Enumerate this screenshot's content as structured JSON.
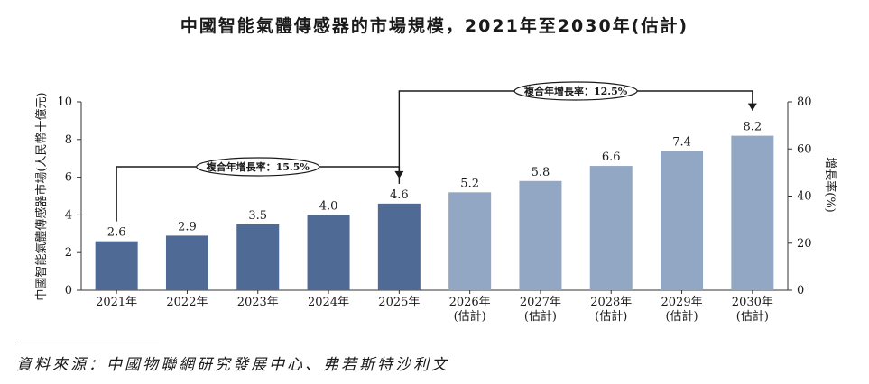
{
  "chart_data": {
    "type": "bar",
    "title": "中國智能氣體傳感器的市場規模，2021年至2030年(估計)",
    "ylabel": "中國智能氣體傳感器市場(人民幣十億元)",
    "y2label": "增長率(%)",
    "ylim": [
      0,
      10
    ],
    "yticks": [
      0,
      2,
      4,
      6,
      8,
      10
    ],
    "y2lim": [
      0,
      80
    ],
    "y2ticks": [
      0,
      20,
      40,
      60,
      80
    ],
    "categories": [
      [
        "2021年"
      ],
      [
        "2022年"
      ],
      [
        "2023年"
      ],
      [
        "2024年"
      ],
      [
        "2025年"
      ],
      [
        "2026年",
        "(估計)"
      ],
      [
        "2027年",
        "(估計)"
      ],
      [
        "2028年",
        "(估計)"
      ],
      [
        "2029年",
        "(估計)"
      ],
      [
        "2030年",
        "(估計)"
      ]
    ],
    "values": [
      2.6,
      2.9,
      3.5,
      4.0,
      4.6,
      5.2,
      5.8,
      6.6,
      7.4,
      8.2
    ],
    "value_labels": [
      "2.6",
      "2.9",
      "3.5",
      "4.0",
      "4.6",
      "5.2",
      "5.8",
      "6.6",
      "7.4",
      "8.2"
    ],
    "colors": {
      "historical": "#4f6a94",
      "forecast": "#92a7c4",
      "axis": "#333333"
    },
    "historical_count": 5,
    "annotations": [
      {
        "label": "複合年增長率：15.5%",
        "from_index": 0,
        "to_index": 4
      },
      {
        "label": "複合年增長率：12.5%",
        "from_index": 4,
        "to_index": 9
      }
    ],
    "grid": false,
    "legend": "none"
  },
  "source": {
    "text": "資料來源：中國物聯網研究發展中心、弗若斯特沙利文"
  }
}
